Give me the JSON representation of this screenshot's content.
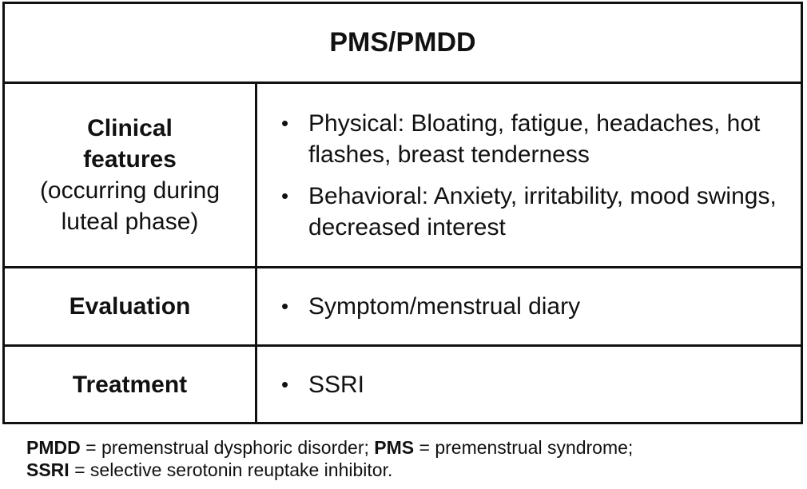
{
  "table": {
    "title": "PMS/PMDD",
    "rows": [
      {
        "label_bold": "Clinical features",
        "label_normal": "(occurring during luteal phase)",
        "bullets": [
          "Physical: Bloating, fatigue, headaches, hot flashes, breast tenderness",
          "Behavioral: Anxiety, irritability, mood swings, decreased interest"
        ]
      },
      {
        "label_bold": "Evaluation",
        "bullets": [
          "Symptom/menstrual diary"
        ]
      },
      {
        "label_bold": "Treatment",
        "bullets": [
          "SSRI"
        ]
      }
    ],
    "bullet_symbol": "•"
  },
  "footnote": {
    "line1": [
      {
        "abbr": "PMDD",
        "text": " = premenstrual dysphoric disorder; "
      },
      {
        "abbr": "PMS",
        "text": " = premenstrual syndrome;"
      }
    ],
    "line2": [
      {
        "abbr": "SSRI",
        "text": " = selective serotonin reuptake inhibitor."
      }
    ]
  }
}
